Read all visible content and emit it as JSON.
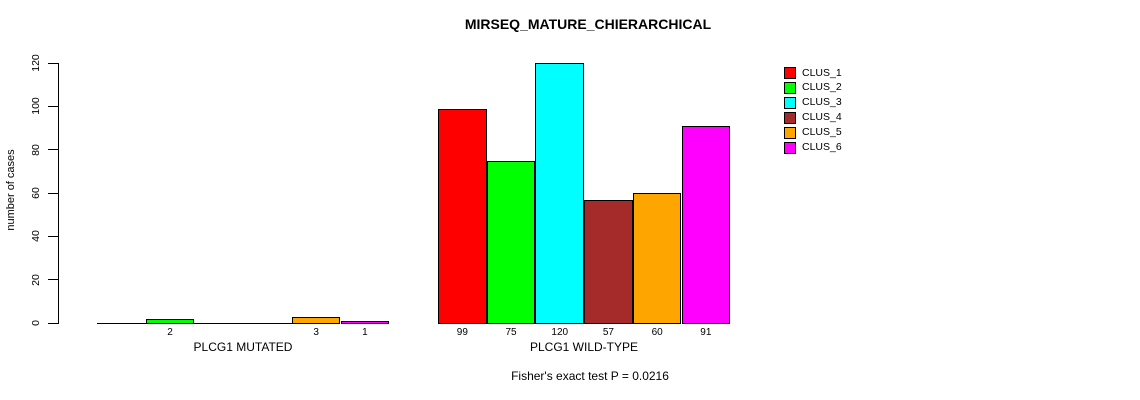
{
  "chart_data": {
    "type": "bar",
    "title": "MIRSEQ_MATURE_CHIERARCHICAL",
    "ylabel": "number of cases",
    "xlabel": "",
    "ylim": [
      0,
      120
    ],
    "yticks": [
      0,
      20,
      40,
      60,
      80,
      100,
      120
    ],
    "grid": false,
    "legend_position": "right",
    "categories": [
      "PLCG1 MUTATED",
      "PLCG1 WILD-TYPE"
    ],
    "series": [
      {
        "name": "CLUS_1",
        "color": "#FF0000",
        "values": [
          0,
          99
        ]
      },
      {
        "name": "CLUS_2",
        "color": "#00FF00",
        "values": [
          2,
          75
        ]
      },
      {
        "name": "CLUS_3",
        "color": "#00FFFF",
        "values": [
          0,
          120
        ]
      },
      {
        "name": "CLUS_4",
        "color": "#A52A2A",
        "values": [
          0,
          57
        ]
      },
      {
        "name": "CLUS_5",
        "color": "#FFA500",
        "values": [
          3,
          60
        ]
      },
      {
        "name": "CLUS_6",
        "color": "#FF00FF",
        "values": [
          1,
          91
        ]
      }
    ],
    "bar_value_labels": {
      "PLCG1 MUTATED": [
        null,
        2,
        null,
        null,
        3,
        1
      ],
      "PLCG1 WILD-TYPE": [
        99,
        75,
        120,
        57,
        60,
        91
      ]
    },
    "annotation": "Fisher's exact test P = 0.0216"
  },
  "legend": {
    "entries": [
      {
        "label": "CLUS_1",
        "color": "#FF0000"
      },
      {
        "label": "CLUS_2",
        "color": "#00FF00"
      },
      {
        "label": "CLUS_3",
        "color": "#00FFFF"
      },
      {
        "label": "CLUS_4",
        "color": "#A52A2A"
      },
      {
        "label": "CLUS_5",
        "color": "#FFA500"
      },
      {
        "label": "CLUS_6",
        "color": "#FF00FF"
      }
    ]
  },
  "colors": {
    "axis": "#000000",
    "background": "#FFFFFF",
    "text": "#000000"
  }
}
